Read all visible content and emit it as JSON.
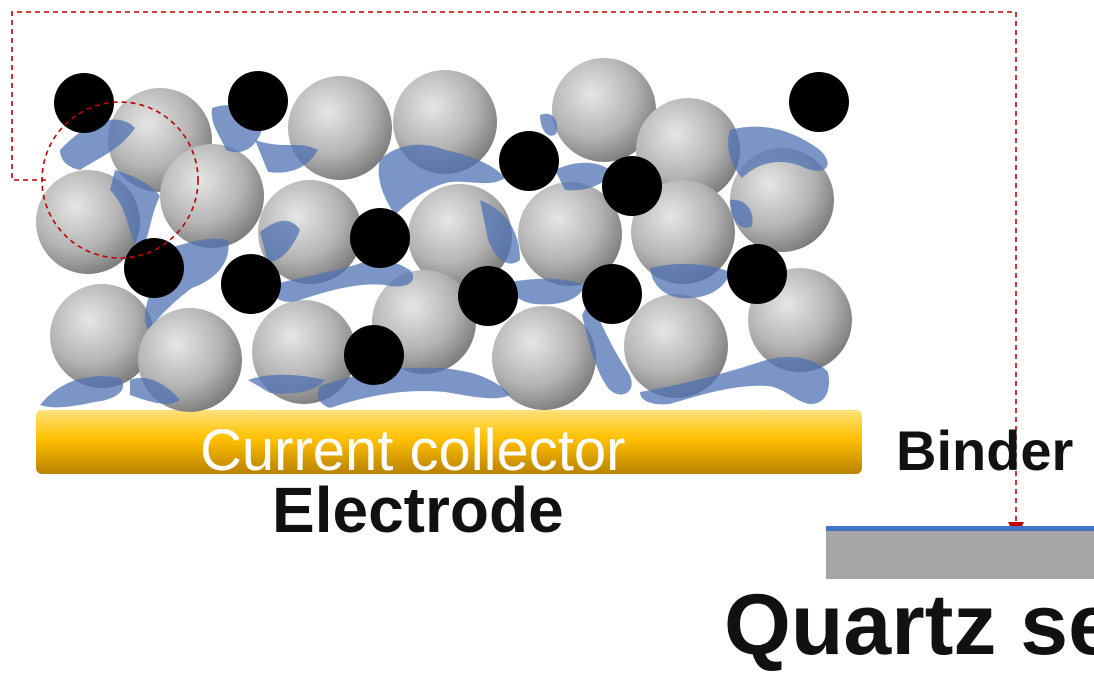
{
  "labels": {
    "current_collector": "Current collector",
    "electrode": "Electrode",
    "binder": "Binder",
    "quartz": "Quartz se"
  },
  "colors": {
    "active_particle": "#a6a6a6",
    "conductive_carbon": "#000000",
    "binder": "#4f73b3",
    "collector": "#ffc000",
    "substrate": "#a6a6a6",
    "binder_film": "#4472c4",
    "callout_line": "#c00000"
  }
}
